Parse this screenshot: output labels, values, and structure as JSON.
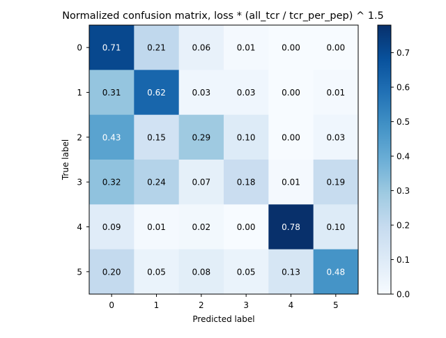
{
  "chart_data": {
    "type": "heatmap",
    "title": "Normalized confusion matrix, loss * (all_tcr / tcr_per_pep) ^ 1.5",
    "xlabel": "Predicted label",
    "ylabel": "True label",
    "x_categories": [
      "0",
      "1",
      "2",
      "3",
      "4",
      "5"
    ],
    "y_categories": [
      "0",
      "1",
      "2",
      "3",
      "4",
      "5"
    ],
    "values": [
      [
        0.71,
        0.21,
        0.06,
        0.01,
        0.0,
        0.0
      ],
      [
        0.31,
        0.62,
        0.03,
        0.03,
        0.0,
        0.01
      ],
      [
        0.43,
        0.15,
        0.29,
        0.1,
        0.0,
        0.03
      ],
      [
        0.32,
        0.24,
        0.07,
        0.18,
        0.01,
        0.19
      ],
      [
        0.09,
        0.01,
        0.02,
        0.0,
        0.78,
        0.1
      ],
      [
        0.2,
        0.05,
        0.08,
        0.05,
        0.13,
        0.48
      ]
    ],
    "cell_labels": [
      [
        "0.71",
        "0.21",
        "0.06",
        "0.01",
        "0.00",
        "0.00"
      ],
      [
        "0.31",
        "0.62",
        "0.03",
        "0.03",
        "0.00",
        "0.01"
      ],
      [
        "0.43",
        "0.15",
        "0.29",
        "0.10",
        "0.00",
        "0.03"
      ],
      [
        "0.32",
        "0.24",
        "0.07",
        "0.18",
        "0.01",
        "0.19"
      ],
      [
        "0.09",
        "0.01",
        "0.02",
        "0.00",
        "0.78",
        "0.10"
      ],
      [
        "0.20",
        "0.05",
        "0.08",
        "0.05",
        "0.13",
        "0.48"
      ]
    ],
    "colormap": "Blues",
    "colormap_light": "#f7fbff",
    "colormap_dark": "#08306b",
    "value_range": [
      0,
      0.78
    ],
    "colorbar_ticks": [
      "0.0",
      "0.1",
      "0.2",
      "0.3",
      "0.4",
      "0.5",
      "0.6",
      "0.7"
    ],
    "text_color_light": "#ffffff",
    "text_color_dark": "#000000",
    "grid": false
  }
}
